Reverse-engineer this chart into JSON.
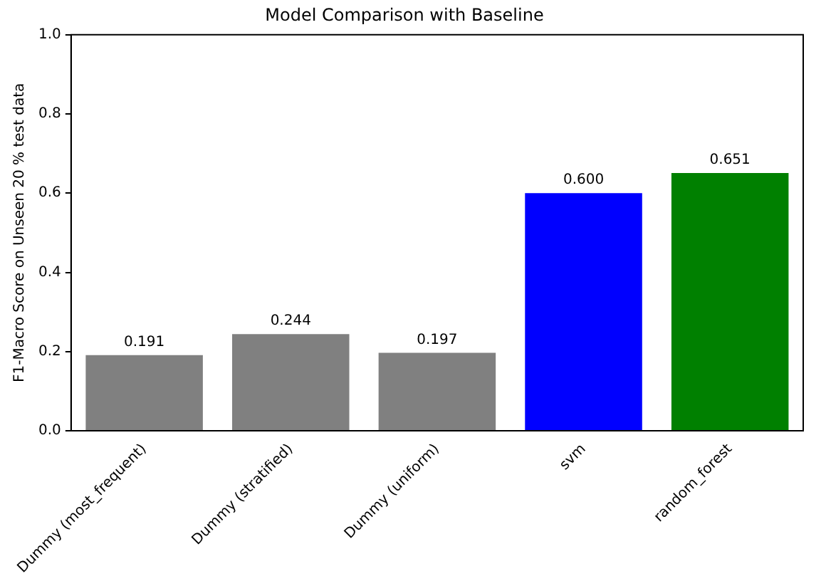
{
  "chart_data": {
    "type": "bar",
    "title": "Model Comparison with Baseline",
    "ylabel": "F1-Macro Score on Unseen 20 % test data",
    "categories": [
      "Dummy (most_frequent)",
      "Dummy (stratified)",
      "Dummy (uniform)",
      "svm",
      "random_forest"
    ],
    "values": [
      0.191,
      0.244,
      0.197,
      0.6,
      0.651
    ],
    "colors": [
      "#808080",
      "#808080",
      "#808080",
      "#0000ff",
      "#008000"
    ],
    "value_labels": [
      "0.191",
      "0.244",
      "0.197",
      "0.600",
      "0.651"
    ],
    "ylim": [
      0,
      1
    ],
    "yticks": [
      {
        "value": 0,
        "label": "0.0"
      },
      {
        "value": 0.2,
        "label": "0.2"
      },
      {
        "value": 0.4,
        "label": "0.4"
      },
      {
        "value": 0.6,
        "label": "0.6"
      },
      {
        "value": 0.8,
        "label": "0.8"
      },
      {
        "value": 1,
        "label": "1.0"
      }
    ],
    "grid": false,
    "legend": false
  }
}
